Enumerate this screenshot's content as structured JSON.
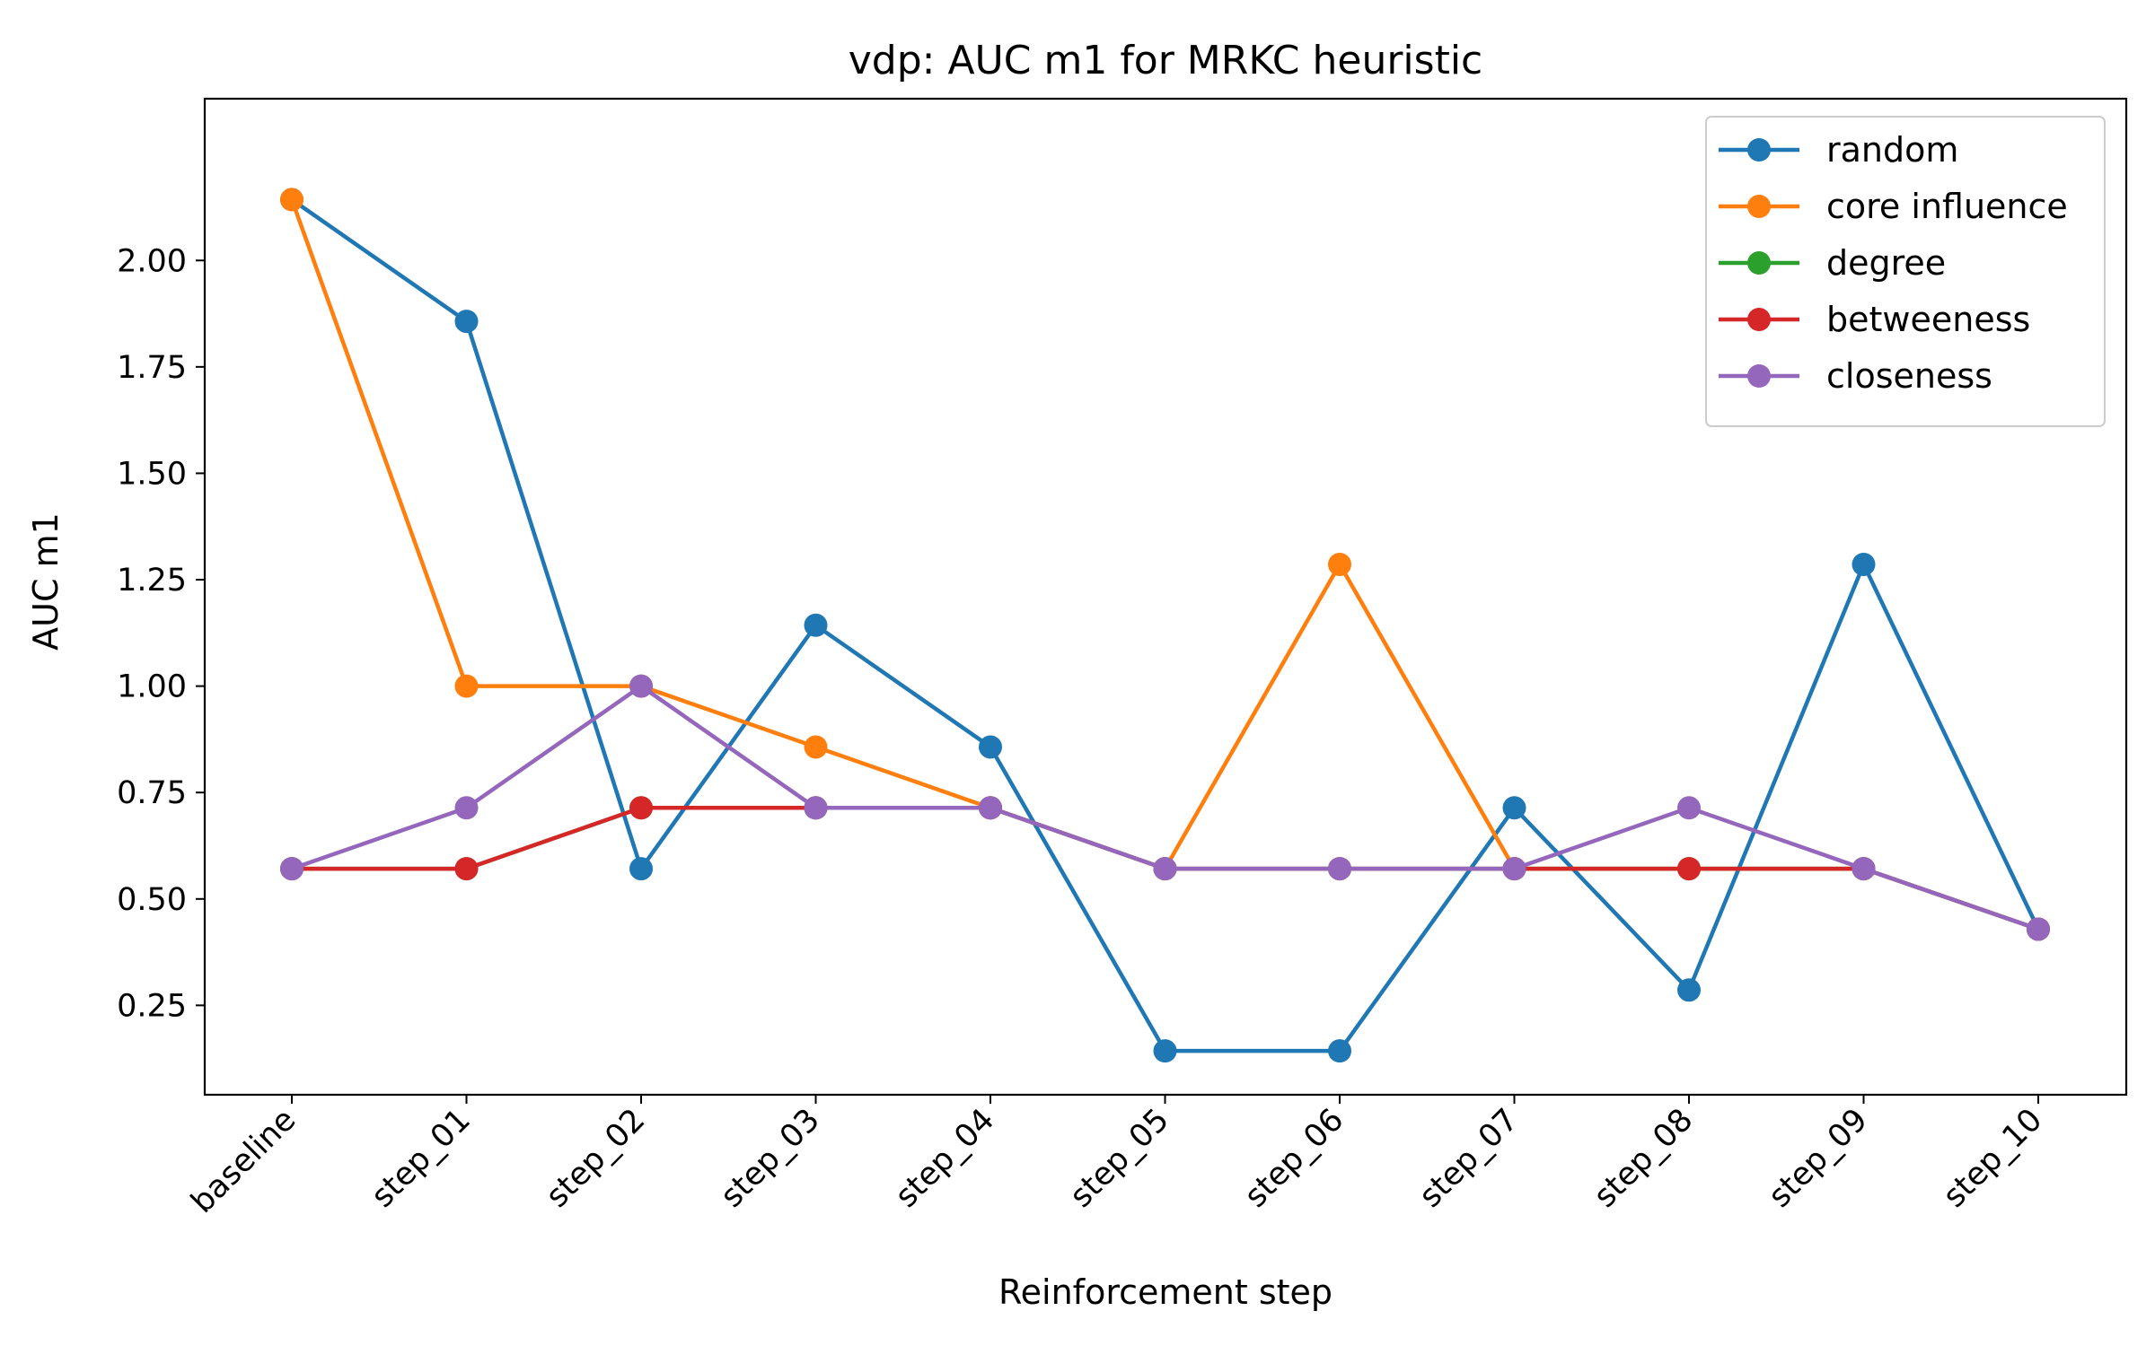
{
  "chart_data": {
    "type": "line",
    "title": "vdp: AUC m1 for MRKC heuristic",
    "xlabel": "Reinforcement step",
    "ylabel": "AUC m1",
    "categories": [
      "baseline",
      "step_01",
      "step_02",
      "step_03",
      "step_04",
      "step_05",
      "step_06",
      "step_07",
      "step_08",
      "step_09",
      "step_10"
    ],
    "ylim": [
      0.04,
      2.38
    ],
    "yticks": [
      "0.25",
      "0.50",
      "0.75",
      "1.00",
      "1.25",
      "1.50",
      "1.75",
      "2.00"
    ],
    "grid": false,
    "legend_position": "top-right",
    "series": [
      {
        "name": "random",
        "color": "#1f77b4",
        "values": [
          2.143,
          1.857,
          0.571,
          1.143,
          0.857,
          0.143,
          0.143,
          0.714,
          0.286,
          1.286,
          0.429
        ]
      },
      {
        "name": "core influence",
        "color": "#ff7f0e",
        "values": [
          2.143,
          1.0,
          1.0,
          0.857,
          0.714,
          0.571,
          1.286,
          0.571,
          0.571,
          0.571,
          0.429
        ]
      },
      {
        "name": "degree",
        "color": "#2ca02c",
        "values": [
          0.571,
          0.571,
          0.714,
          0.714,
          0.714,
          0.571,
          0.571,
          0.571,
          0.571,
          0.571,
          0.429
        ]
      },
      {
        "name": "betweeness",
        "color": "#d62728",
        "values": [
          0.571,
          0.571,
          0.714,
          0.714,
          0.714,
          0.571,
          0.571,
          0.571,
          0.571,
          0.571,
          0.429
        ]
      },
      {
        "name": "closeness",
        "color": "#9467bd",
        "values": [
          0.571,
          0.714,
          1.0,
          0.714,
          0.714,
          0.571,
          0.571,
          0.571,
          0.714,
          0.571,
          0.429
        ]
      }
    ]
  }
}
